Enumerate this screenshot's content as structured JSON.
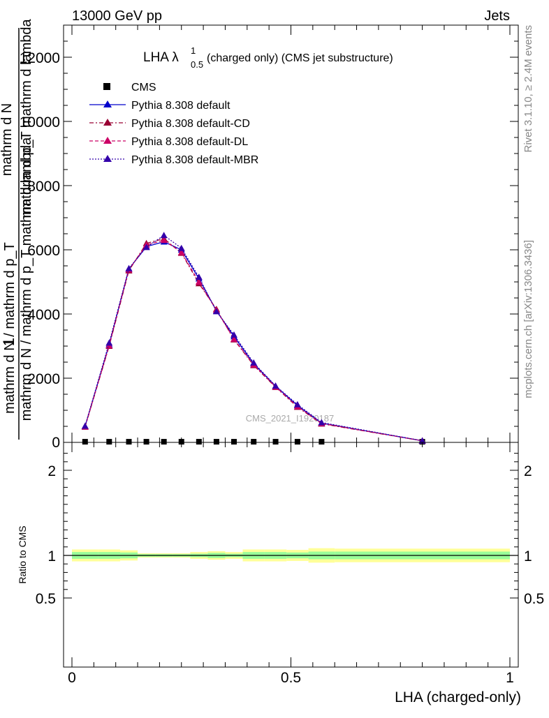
{
  "header": {
    "left": "13000 GeV pp",
    "right": "Jets"
  },
  "side_labels": {
    "top": "Rivet 3.1.10, ≥ 2.4M events",
    "bottom": "mcplots.cern.ch [arXiv:1306.3436]"
  },
  "watermark": "CMS_2021_I1920187",
  "plot_title": {
    "main": "LHA λ",
    "sup": "1",
    "sub": "0.5",
    "tail": " (charged only) (CMS jet substructure)"
  },
  "y_label": {
    "one": "1",
    "num": "mathrm d N / mathrm d p_T",
    "den": "mathrm d N / mathrm d p_T mathrm d lambda",
    "top_num": "mathrm d N",
    "top_den": "mathrm d p_T mathrm d lambda"
  },
  "x_label": "LHA (charged-only)",
  "ratio_label": "Ratio to CMS",
  "colors": {
    "cms": "#000000",
    "default": "#0000cc",
    "cd": "#990033",
    "dl": "#cc0066",
    "mbr": "#3300aa",
    "band_inner": "#99ff99",
    "band_outer": "#ffff99"
  },
  "chart_data": {
    "type": "line",
    "main_ylim": [
      0,
      13000
    ],
    "main_yticks": [
      2000,
      4000,
      6000,
      8000,
      10000,
      12000
    ],
    "main_ytick_labels": [
      "2000",
      "4000",
      "6000",
      "8000",
      "10000",
      "12000"
    ],
    "ratio_ylim": [
      0.4,
      2.3
    ],
    "ratio_yticks": [
      0.5,
      1,
      2
    ],
    "ratio_ytick_labels": [
      "0.5",
      "1",
      "2"
    ],
    "xlim": [
      0,
      1
    ],
    "xticks": [
      0,
      0.5,
      1
    ],
    "xtick_labels": [
      "0",
      "0.5",
      "1"
    ],
    "series": [
      {
        "name": "CMS",
        "kind": "data",
        "x": [
          0.03,
          0.085,
          0.13,
          0.17,
          0.21,
          0.25,
          0.29,
          0.33,
          0.37,
          0.415,
          0.465,
          0.515,
          0.57,
          0.8
        ],
        "y": [
          20,
          20,
          20,
          20,
          20,
          20,
          20,
          20,
          20,
          20,
          20,
          20,
          20,
          20
        ]
      },
      {
        "name": "Pythia 8.308 default",
        "style": "solid",
        "colorKey": "default",
        "x": [
          0.03,
          0.085,
          0.13,
          0.17,
          0.21,
          0.25,
          0.29,
          0.33,
          0.37,
          0.415,
          0.465,
          0.515,
          0.57,
          0.8
        ],
        "y": [
          500,
          3050,
          5400,
          6100,
          6250,
          6000,
          5100,
          4100,
          3300,
          2450,
          1750,
          1150,
          600,
          50
        ]
      },
      {
        "name": "Pythia 8.308 default-CD",
        "style": "dashdot",
        "colorKey": "cd",
        "x": [
          0.03,
          0.085,
          0.13,
          0.17,
          0.21,
          0.25,
          0.29,
          0.33,
          0.37,
          0.415,
          0.465,
          0.515,
          0.57,
          0.8
        ],
        "y": [
          480,
          3000,
          5350,
          6200,
          6350,
          5900,
          4950,
          4150,
          3200,
          2400,
          1720,
          1100,
          580,
          50
        ]
      },
      {
        "name": "Pythia 8.308 default-DL",
        "style": "dashed",
        "colorKey": "dl",
        "x": [
          0.03,
          0.085,
          0.13,
          0.17,
          0.21,
          0.25,
          0.29,
          0.33,
          0.37,
          0.415,
          0.465,
          0.515,
          0.57,
          0.8
        ],
        "y": [
          490,
          3020,
          5380,
          6150,
          6300,
          5920,
          5000,
          4120,
          3220,
          2420,
          1730,
          1120,
          590,
          50
        ]
      },
      {
        "name": "Pythia 8.308 default-MBR",
        "style": "dotted",
        "colorKey": "mbr",
        "x": [
          0.03,
          0.085,
          0.13,
          0.17,
          0.21,
          0.25,
          0.29,
          0.33,
          0.37,
          0.415,
          0.465,
          0.515,
          0.57,
          0.8
        ],
        "y": [
          510,
          3100,
          5420,
          6080,
          6450,
          6050,
          5150,
          4080,
          3350,
          2480,
          1760,
          1180,
          620,
          50
        ]
      }
    ],
    "ratio_bands": [
      {
        "x0": 0.0,
        "x1": 0.06,
        "inner": [
          0.96,
          1.04
        ],
        "outer": [
          0.93,
          1.07
        ]
      },
      {
        "x0": 0.06,
        "x1": 0.11,
        "inner": [
          0.96,
          1.04
        ],
        "outer": [
          0.93,
          1.07
        ]
      },
      {
        "x0": 0.11,
        "x1": 0.15,
        "inner": [
          0.965,
          1.035
        ],
        "outer": [
          0.94,
          1.06
        ]
      },
      {
        "x0": 0.15,
        "x1": 0.19,
        "inner": [
          0.985,
          1.015
        ],
        "outer": [
          0.975,
          1.025
        ]
      },
      {
        "x0": 0.19,
        "x1": 0.23,
        "inner": [
          0.985,
          1.015
        ],
        "outer": [
          0.975,
          1.025
        ]
      },
      {
        "x0": 0.23,
        "x1": 0.27,
        "inner": [
          0.985,
          1.015
        ],
        "outer": [
          0.975,
          1.025
        ]
      },
      {
        "x0": 0.27,
        "x1": 0.31,
        "inner": [
          0.98,
          1.02
        ],
        "outer": [
          0.96,
          1.04
        ]
      },
      {
        "x0": 0.31,
        "x1": 0.35,
        "inner": [
          0.97,
          1.03
        ],
        "outer": [
          0.95,
          1.05
        ]
      },
      {
        "x0": 0.35,
        "x1": 0.39,
        "inner": [
          0.98,
          1.02
        ],
        "outer": [
          0.96,
          1.04
        ]
      },
      {
        "x0": 0.39,
        "x1": 0.44,
        "inner": [
          0.96,
          1.04
        ],
        "outer": [
          0.93,
          1.07
        ]
      },
      {
        "x0": 0.44,
        "x1": 0.49,
        "inner": [
          0.96,
          1.04
        ],
        "outer": [
          0.93,
          1.07
        ]
      },
      {
        "x0": 0.49,
        "x1": 0.54,
        "inner": [
          0.965,
          1.035
        ],
        "outer": [
          0.935,
          1.065
        ]
      },
      {
        "x0": 0.54,
        "x1": 0.6,
        "inner": [
          0.955,
          1.045
        ],
        "outer": [
          0.915,
          1.085
        ]
      },
      {
        "x0": 0.6,
        "x1": 1.0,
        "inner": [
          0.955,
          1.045
        ],
        "outer": [
          0.92,
          1.08
        ]
      }
    ]
  }
}
